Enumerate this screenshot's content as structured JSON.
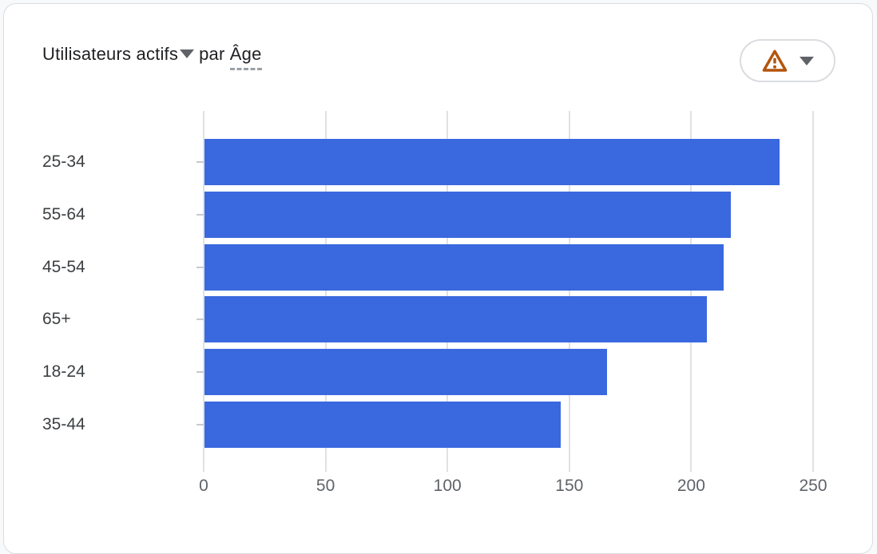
{
  "card": {
    "header": {
      "metric_label": "Utilisateurs actifs",
      "connector": "par",
      "dimension_label": "Âge"
    },
    "insights_button": {
      "icons": [
        "warning-triangle-icon",
        "chevron-down-icon"
      ]
    }
  },
  "colors": {
    "bar": "#3A68DE",
    "grid": "#dfe1e5",
    "title_text": "#202124",
    "category_text": "#3c4043",
    "tick_text": "#5f6368",
    "warning_icon": "#B3540E",
    "caret_icon": "#5f6368",
    "card_border": "#dadce0"
  },
  "chart_data": {
    "type": "bar",
    "orientation": "horizontal",
    "title": "Utilisateurs actifs par Âge",
    "categories": [
      "25-34",
      "55-64",
      "45-54",
      "65+",
      "18-24",
      "35-44"
    ],
    "values": [
      236,
      216,
      213,
      206,
      165,
      146
    ],
    "xlabel": "",
    "ylabel": "",
    "xlim": [
      0,
      250
    ],
    "xticks": [
      0,
      50,
      100,
      150,
      200,
      250
    ],
    "grid": true,
    "legend": false
  }
}
